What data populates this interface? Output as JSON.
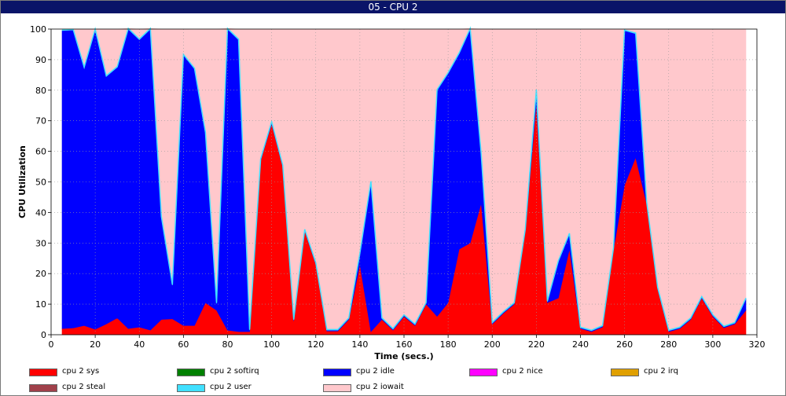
{
  "window": {
    "title": "05 - CPU 2"
  },
  "chart_data": {
    "type": "area",
    "stacked": true,
    "title": "",
    "xlabel": "Time (secs.)",
    "ylabel": "CPU Utilization",
    "xlim": [
      0,
      320
    ],
    "ylim": [
      0,
      100
    ],
    "xticks": [
      0,
      20,
      40,
      60,
      80,
      100,
      120,
      140,
      160,
      180,
      200,
      220,
      240,
      260,
      280,
      300,
      320
    ],
    "yticks": [
      0,
      10,
      20,
      30,
      40,
      50,
      60,
      70,
      80,
      90,
      100
    ],
    "grid": true,
    "legend_position": "bottom",
    "x": [
      5,
      10,
      15,
      20,
      25,
      30,
      35,
      40,
      45,
      50,
      55,
      60,
      65,
      70,
      75,
      80,
      85,
      90,
      95,
      100,
      105,
      110,
      115,
      120,
      125,
      130,
      135,
      140,
      145,
      150,
      155,
      160,
      165,
      170,
      175,
      180,
      185,
      190,
      195,
      200,
      205,
      210,
      215,
      220,
      225,
      230,
      235,
      240,
      245,
      250,
      255,
      260,
      265,
      270,
      275,
      280,
      285,
      290,
      295,
      300,
      305,
      310,
      315
    ],
    "series": [
      {
        "name": "cpu 2 sys",
        "color": "#ff0000",
        "values": [
          2,
          2.2,
          3,
          1.8,
          3.5,
          5.5,
          2,
          2.5,
          1.5,
          5,
          5.2,
          3,
          3,
          10.5,
          8,
          1.5,
          1,
          1,
          57,
          69,
          55,
          4.5,
          34,
          23,
          1.2,
          1.2,
          5,
          23,
          1,
          5,
          1.5,
          6,
          3,
          10,
          6,
          10.5,
          28,
          30,
          43,
          3.5,
          7,
          10,
          34,
          76,
          10.5,
          12,
          28,
          2,
          1,
          2.5,
          28,
          49,
          58,
          43,
          15,
          1,
          2,
          5,
          12,
          6,
          2.3,
          3.5,
          8
        ]
      },
      {
        "name": "cpu 2 softirq",
        "color": "#008000",
        "values": [
          0,
          0,
          0,
          0,
          0,
          0,
          0,
          0,
          0,
          0,
          0,
          0,
          0,
          0,
          0,
          0,
          0,
          0,
          0,
          0,
          0,
          0,
          0,
          0,
          0,
          0,
          0,
          0,
          0,
          0,
          0,
          0,
          0,
          0,
          0,
          0,
          0,
          0,
          0,
          0,
          0,
          0,
          0,
          0,
          0,
          0,
          0,
          0,
          0,
          0,
          0,
          0,
          0,
          0,
          0,
          0,
          0,
          0,
          0,
          0,
          0,
          0,
          0
        ]
      },
      {
        "name": "cpu 2 idle",
        "color": "#0000ff",
        "values": [
          97.5,
          97.5,
          84.3,
          98,
          81,
          82,
          98,
          94,
          98.5,
          33.5,
          11,
          88.5,
          84,
          55.5,
          2.2,
          98.5,
          95.5,
          0.5,
          0.3,
          0.5,
          0.3,
          0.3,
          0.3,
          0.3,
          0.3,
          0.3,
          0.3,
          3.5,
          49,
          0.3,
          0.3,
          0.3,
          0.3,
          0.3,
          74,
          75,
          64,
          70,
          16,
          0.3,
          0.3,
          0.3,
          0.3,
          4,
          0.3,
          12,
          5,
          0.3,
          0.3,
          0.3,
          0.3,
          50.5,
          40.5,
          0.3,
          0.3,
          0.3,
          0.3,
          0.3,
          0.3,
          0.3,
          0.3,
          0.3,
          3.8
        ]
      },
      {
        "name": "cpu 2 nice",
        "color": "#ff00ff",
        "values": [
          0,
          0,
          0,
          0,
          0,
          0,
          0,
          0,
          0,
          0,
          0,
          0,
          0,
          0,
          0,
          0,
          0,
          0,
          0,
          0,
          0,
          0,
          0,
          0,
          0,
          0,
          0,
          0,
          0,
          0,
          0,
          0,
          0,
          0,
          0,
          0,
          0,
          0,
          0,
          0,
          0,
          0,
          0,
          0,
          0,
          0,
          0,
          0,
          0,
          0,
          0,
          0,
          0,
          0,
          0,
          0,
          0,
          0,
          0,
          0,
          0,
          0,
          0
        ]
      },
      {
        "name": "cpu 2 irq",
        "color": "#e0a000",
        "values": [
          0,
          0,
          0,
          0,
          0,
          0,
          0,
          0,
          0,
          0,
          0,
          0,
          0,
          0,
          0,
          0,
          0,
          0,
          0,
          0,
          0,
          0,
          0,
          0,
          0,
          0,
          0,
          0,
          0,
          0,
          0,
          0,
          0,
          0,
          0,
          0,
          0,
          0,
          0,
          0,
          0,
          0,
          0,
          0,
          0,
          0,
          0,
          0,
          0,
          0,
          0,
          0,
          0,
          0,
          0,
          0,
          0,
          0,
          0,
          0,
          0,
          0,
          0
        ]
      },
      {
        "name": "cpu 2 steal",
        "color": "#a0404a",
        "values": [
          0,
          0,
          0,
          0,
          0,
          0,
          0,
          0,
          0,
          0,
          0,
          0,
          0,
          0,
          0,
          0,
          0,
          0,
          0,
          0,
          0,
          0,
          0,
          0,
          0,
          0,
          0,
          0,
          0,
          0,
          0,
          0,
          0,
          0,
          0,
          0,
          0,
          0,
          0,
          0,
          0,
          0,
          0,
          0,
          0,
          0,
          0,
          0,
          0,
          0,
          0,
          0,
          0,
          0,
          0,
          0,
          0,
          0,
          0,
          0,
          0,
          0,
          0
        ]
      },
      {
        "name": "cpu 2 user",
        "color": "#40e0ff",
        "values": [
          0.2,
          0.2,
          0.2,
          0.2,
          0.2,
          0.2,
          0.2,
          0.2,
          0.2,
          0.2,
          0.2,
          0.2,
          0.2,
          0.2,
          0.2,
          0.2,
          0.2,
          0.2,
          0.2,
          0.2,
          0.2,
          0.2,
          0.2,
          0.2,
          0.2,
          0.2,
          0.2,
          0.2,
          0.2,
          0.2,
          0.2,
          0.2,
          0.2,
          0.2,
          0.2,
          0.2,
          0.2,
          0.2,
          0.2,
          0.2,
          0.2,
          0.2,
          0.2,
          0.2,
          0.2,
          0.2,
          0.2,
          0.2,
          0.2,
          0.2,
          0.2,
          0.2,
          0.2,
          0.2,
          0.2,
          0.2,
          0.2,
          0.2,
          0.2,
          0.2,
          0.2,
          0.2,
          0.2
        ]
      },
      {
        "name": "cpu 2 iowait",
        "color": "#ffc8cc",
        "values": [
          0.3,
          0.1,
          12.5,
          0,
          15.3,
          12.3,
          0,
          3.3,
          0,
          61.3,
          83.6,
          8.3,
          12.6,
          33.8,
          89.6,
          0,
          3.3,
          98.3,
          42.5,
          30.3,
          44.5,
          95,
          65.5,
          76.5,
          98.3,
          98.3,
          94.5,
          73.3,
          49.8,
          94.5,
          98,
          93.5,
          96.5,
          89.5,
          19.8,
          14.3,
          7.8,
          0,
          40.8,
          96,
          92.5,
          89.5,
          65.5,
          19.8,
          89,
          75.8,
          66.8,
          97.5,
          98.5,
          97,
          71.5,
          0.3,
          1.3,
          56.5,
          84.5,
          98.5,
          97.5,
          94.5,
          87.5,
          93.5,
          97.2,
          96,
          88
        ]
      }
    ]
  },
  "legend": {
    "items": [
      {
        "label": "cpu 2 sys",
        "color": "#ff0000"
      },
      {
        "label": "cpu 2 softirq",
        "color": "#008000"
      },
      {
        "label": "cpu 2 idle",
        "color": "#0000ff"
      },
      {
        "label": "cpu 2 nice",
        "color": "#ff00ff"
      },
      {
        "label": "cpu 2 irq",
        "color": "#e0a000"
      },
      {
        "label": "cpu 2 steal",
        "color": "#a0404a"
      },
      {
        "label": "cpu 2 user",
        "color": "#40e0ff"
      },
      {
        "label": "cpu 2 iowait",
        "color": "#ffc8cc"
      }
    ]
  }
}
